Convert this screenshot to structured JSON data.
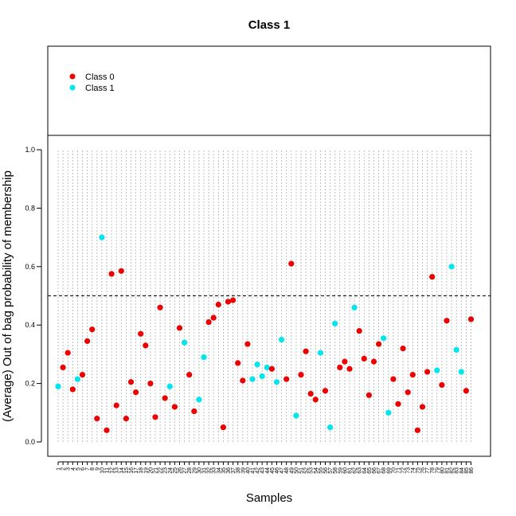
{
  "chart_data": {
    "type": "scatter",
    "title": "Class 1",
    "xlabel": "Samples",
    "ylabel": "(Average) Out of bag probability of membership",
    "xlim": [
      0.5,
      88.5
    ],
    "ylim": [
      0,
      1
    ],
    "yticks": [
      0.0,
      0.2,
      0.4,
      0.6,
      0.8,
      1.0
    ],
    "ytick_labels": [
      "0.0",
      "0.2",
      "0.4",
      "0.6",
      "0.8",
      "1.0"
    ],
    "threshold": 0.5,
    "threshold_style": "dashed",
    "grid": "vertical-dotted",
    "legend": {
      "placement": "top-left",
      "entries": [
        {
          "label": "Class 0",
          "color": "#ee0000"
        },
        {
          "label": "Class 1",
          "color": "#00e5ee"
        }
      ]
    },
    "points": [
      {
        "x": 1,
        "y": 0.19,
        "class": 1
      },
      {
        "x": 2,
        "y": 0.255,
        "class": 0
      },
      {
        "x": 3,
        "y": 0.305,
        "class": 0
      },
      {
        "x": 4,
        "y": 0.18,
        "class": 0
      },
      {
        "x": 5,
        "y": 0.215,
        "class": 1
      },
      {
        "x": 6,
        "y": 0.23,
        "class": 0
      },
      {
        "x": 7,
        "y": 0.345,
        "class": 0
      },
      {
        "x": 8,
        "y": 0.385,
        "class": 0
      },
      {
        "x": 9,
        "y": 0.08,
        "class": 0
      },
      {
        "x": 10,
        "y": 0.7,
        "class": 1
      },
      {
        "x": 11,
        "y": 0.04,
        "class": 0
      },
      {
        "x": 12,
        "y": 0.575,
        "class": 0
      },
      {
        "x": 13,
        "y": 0.125,
        "class": 0
      },
      {
        "x": 14,
        "y": 0.585,
        "class": 0
      },
      {
        "x": 15,
        "y": 0.08,
        "class": 0
      },
      {
        "x": 16,
        "y": 0.205,
        "class": 0
      },
      {
        "x": 17,
        "y": 0.17,
        "class": 0
      },
      {
        "x": 18,
        "y": 0.37,
        "class": 0
      },
      {
        "x": 19,
        "y": 0.33,
        "class": 0
      },
      {
        "x": 20,
        "y": 0.2,
        "class": 0
      },
      {
        "x": 21,
        "y": 0.085,
        "class": 0
      },
      {
        "x": 22,
        "y": 0.46,
        "class": 0
      },
      {
        "x": 23,
        "y": 0.15,
        "class": 0
      },
      {
        "x": 24,
        "y": 0.19,
        "class": 1
      },
      {
        "x": 25,
        "y": 0.12,
        "class": 0
      },
      {
        "x": 26,
        "y": 0.39,
        "class": 0
      },
      {
        "x": 27,
        "y": 0.34,
        "class": 1
      },
      {
        "x": 28,
        "y": 0.23,
        "class": 0
      },
      {
        "x": 29,
        "y": 0.105,
        "class": 0
      },
      {
        "x": 30,
        "y": 0.145,
        "class": 1
      },
      {
        "x": 31,
        "y": 0.29,
        "class": 1
      },
      {
        "x": 32,
        "y": 0.41,
        "class": 0
      },
      {
        "x": 33,
        "y": 0.425,
        "class": 0
      },
      {
        "x": 34,
        "y": 0.47,
        "class": 0
      },
      {
        "x": 35,
        "y": 0.05,
        "class": 0
      },
      {
        "x": 36,
        "y": 0.48,
        "class": 0
      },
      {
        "x": 37,
        "y": 0.485,
        "class": 0
      },
      {
        "x": 38,
        "y": 0.27,
        "class": 0
      },
      {
        "x": 39,
        "y": 0.21,
        "class": 0
      },
      {
        "x": 40,
        "y": 0.335,
        "class": 0
      },
      {
        "x": 41,
        "y": 0.215,
        "class": 1
      },
      {
        "x": 42,
        "y": 0.265,
        "class": 1
      },
      {
        "x": 43,
        "y": 0.225,
        "class": 1
      },
      {
        "x": 44,
        "y": 0.255,
        "class": 1
      },
      {
        "x": 45,
        "y": 0.25,
        "class": 0
      },
      {
        "x": 46,
        "y": 0.205,
        "class": 1
      },
      {
        "x": 47,
        "y": 0.35,
        "class": 1
      },
      {
        "x": 48,
        "y": 0.215,
        "class": 0
      },
      {
        "x": 49,
        "y": 0.61,
        "class": 0
      },
      {
        "x": 50,
        "y": 0.09,
        "class": 1
      },
      {
        "x": 51,
        "y": 0.23,
        "class": 0
      },
      {
        "x": 52,
        "y": 0.31,
        "class": 0
      },
      {
        "x": 53,
        "y": 0.165,
        "class": 0
      },
      {
        "x": 54,
        "y": 0.145,
        "class": 0
      },
      {
        "x": 55,
        "y": 0.305,
        "class": 1
      },
      {
        "x": 56,
        "y": 0.175,
        "class": 0
      },
      {
        "x": 57,
        "y": 0.05,
        "class": 1
      },
      {
        "x": 58,
        "y": 0.405,
        "class": 1
      },
      {
        "x": 59,
        "y": 0.255,
        "class": 0
      },
      {
        "x": 60,
        "y": 0.275,
        "class": 0
      },
      {
        "x": 61,
        "y": 0.25,
        "class": 0
      },
      {
        "x": 62,
        "y": 0.46,
        "class": 1
      },
      {
        "x": 63,
        "y": 0.38,
        "class": 0
      },
      {
        "x": 64,
        "y": 0.285,
        "class": 0
      },
      {
        "x": 65,
        "y": 0.16,
        "class": 0
      },
      {
        "x": 66,
        "y": 0.275,
        "class": 0
      },
      {
        "x": 67,
        "y": 0.335,
        "class": 0
      },
      {
        "x": 68,
        "y": 0.355,
        "class": 1
      },
      {
        "x": 69,
        "y": 0.1,
        "class": 1
      },
      {
        "x": 70,
        "y": 0.215,
        "class": 0
      },
      {
        "x": 71,
        "y": 0.13,
        "class": 0
      },
      {
        "x": 72,
        "y": 0.32,
        "class": 0
      },
      {
        "x": 73,
        "y": 0.17,
        "class": 0
      },
      {
        "x": 74,
        "y": 0.23,
        "class": 0
      },
      {
        "x": 75,
        "y": 0.04,
        "class": 0
      },
      {
        "x": 76,
        "y": 0.12,
        "class": 0
      },
      {
        "x": 77,
        "y": 0.24,
        "class": 0
      },
      {
        "x": 78,
        "y": 0.565,
        "class": 0
      },
      {
        "x": 79,
        "y": 0.245,
        "class": 1
      },
      {
        "x": 80,
        "y": 0.195,
        "class": 0
      },
      {
        "x": 81,
        "y": 0.415,
        "class": 0
      },
      {
        "x": 82,
        "y": 0.6,
        "class": 1
      },
      {
        "x": 83,
        "y": 0.315,
        "class": 1
      },
      {
        "x": 84,
        "y": 0.24,
        "class": 1
      },
      {
        "x": 85,
        "y": 0.175,
        "class": 0
      },
      {
        "x": 86,
        "y": 0.42,
        "class": 0
      }
    ],
    "x_tick_labels": [
      "1",
      "2",
      "3",
      "4",
      "5",
      "6",
      "7",
      "8",
      "9",
      "10",
      "11",
      "12",
      "13",
      "14",
      "15",
      "16",
      "17",
      "18",
      "19",
      "20",
      "21",
      "22",
      "23",
      "24",
      "25",
      "26",
      "27",
      "28",
      "29",
      "30",
      "31",
      "32",
      "33",
      "34",
      "35",
      "36",
      "37",
      "38",
      "39",
      "40",
      "41",
      "42",
      "43",
      "44",
      "45",
      "46",
      "47",
      "48",
      "49",
      "50",
      "51",
      "52",
      "53",
      "54",
      "55",
      "56",
      "57",
      "58",
      "59",
      "60",
      "61",
      "62",
      "63",
      "64",
      "65",
      "66",
      "67",
      "68",
      "69",
      "70",
      "71",
      "72",
      "73",
      "74",
      "75",
      "76",
      "77",
      "78",
      "79",
      "80",
      "81",
      "82",
      "83",
      "84",
      "85",
      "86"
    ]
  }
}
